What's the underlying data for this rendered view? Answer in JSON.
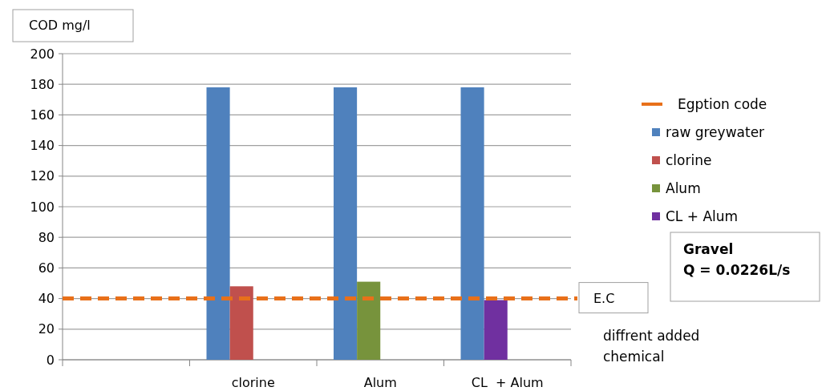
{
  "chart_data": {
    "type": "bar",
    "ylabel": "COD mg/l",
    "categories": [
      null,
      "clorine",
      "Alum",
      "CL  + Alum"
    ],
    "series": [
      {
        "name": "raw greywater",
        "color": "#4f81bd",
        "values": [
          null,
          178,
          178,
          178
        ]
      },
      {
        "name": "clorine",
        "color": "#c0504d",
        "values": [
          null,
          48,
          null,
          null
        ]
      },
      {
        "name": "Alum",
        "color": "#77933c",
        "values": [
          null,
          null,
          51,
          null
        ]
      },
      {
        "name": "CL  + Alum",
        "color": "#7030a0",
        "values": [
          null,
          null,
          null,
          39
        ]
      }
    ],
    "ylim": [
      0,
      200
    ],
    "yticks": [
      0,
      20,
      40,
      60,
      80,
      100,
      120,
      140,
      160,
      180,
      200
    ],
    "grid": "y",
    "legend": "right",
    "ref_lines": [
      {
        "axis": "y",
        "value": 40,
        "label": "Egption code",
        "color": "#e8701a",
        "line_style": "dashed"
      }
    ],
    "annotations": [
      "E.C",
      "Gravel\nQ = 0.0226L/s",
      "diffrent added\nchemical"
    ]
  }
}
